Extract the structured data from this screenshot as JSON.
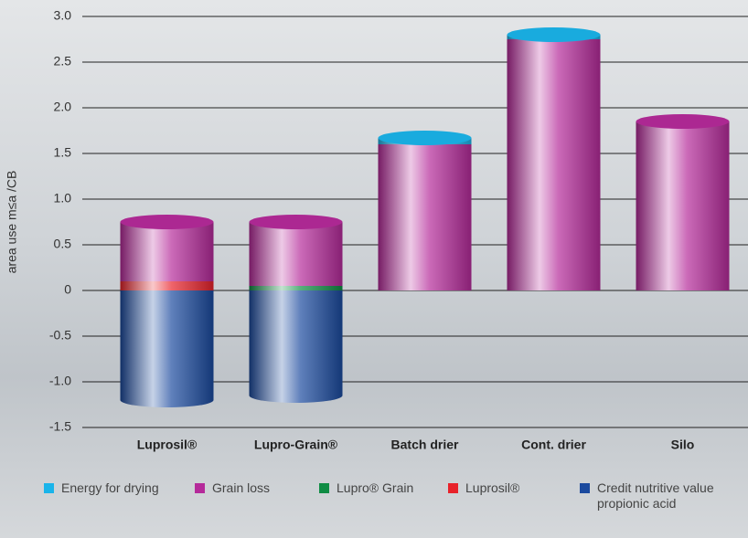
{
  "chart_data": {
    "type": "stacked-bar",
    "ylabel": "area use m≤a /CB",
    "categories": [
      "Luprosil®",
      "Lupro-Grain®",
      "Batch drier",
      "Cont. drier",
      "Silo"
    ],
    "series": [
      {
        "name": "Energy for drying",
        "color": "#1ab4ea",
        "values": [
          null,
          null,
          0.07,
          0.05,
          null
        ]
      },
      {
        "name": "Grain loss",
        "color": "#b52a9a",
        "values": [
          0.65,
          0.7,
          1.6,
          2.75,
          1.85
        ]
      },
      {
        "name": "Lupro® Grain",
        "color": "#0f8c44",
        "values": [
          null,
          0.05,
          null,
          null,
          null
        ]
      },
      {
        "name": "Luprosil®",
        "color": "#e8222a",
        "values": [
          0.1,
          null,
          null,
          null,
          null
        ]
      },
      {
        "name": "Credit nutritive value propionic acid",
        "color": "#1b4a9e",
        "values": [
          -1.2,
          -1.15,
          null,
          null,
          null
        ]
      }
    ],
    "ylim": [
      -1.5,
      3
    ],
    "yticks": [
      {
        "value": 3,
        "label": "3.0"
      },
      2.5,
      {
        "value": 2,
        "label": "2.0"
      },
      1.5,
      {
        "value": 1,
        "label": "1.0"
      },
      0.5,
      0,
      -0.5,
      {
        "value": -1,
        "label": "-1.0"
      },
      -1.5
    ],
    "grid": true
  }
}
